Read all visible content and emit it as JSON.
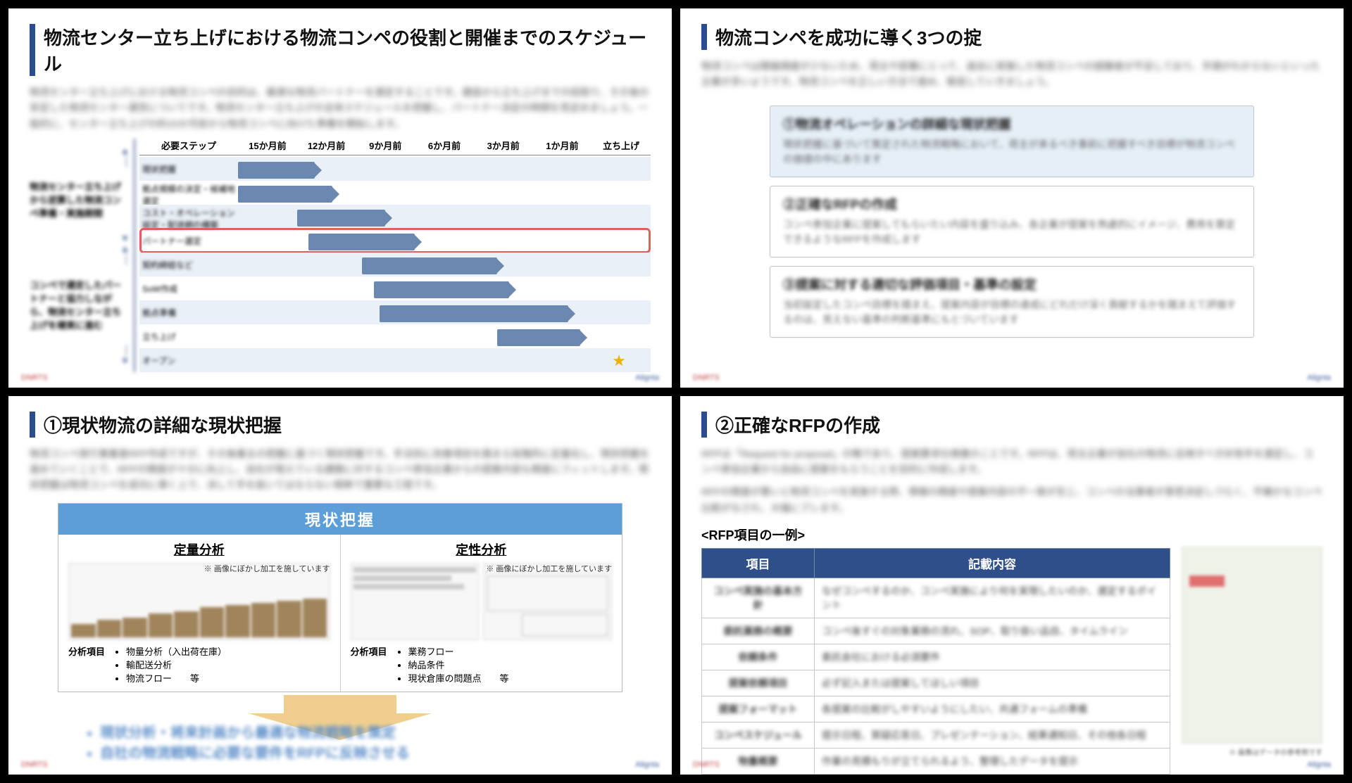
{
  "slide1": {
    "title": "物流センター立ち上げにおける物流コンペの役割と開催までのスケジュール",
    "intro": "物流センター立ち上げにおける物流コンペの目的は、最適な物流パートナーを選定することです。建設から立ち上げまでの段取り、その後の安定した物流センター運営についてです。物流センター立ち上げの全体スケジュールを把握し、パートナー決定の時期を見定めましょう。一般的に、センター立ち上げの約15か月前から物流コンペに向けた準備を開始します。",
    "step_label": "必要ステップ",
    "columns": [
      "15か月前",
      "12か月前",
      "9か月前",
      "6か月前",
      "3か月前",
      "1か月前",
      "立ち上げ"
    ],
    "rows": [
      {
        "label": "現状把握",
        "start": 0,
        "span": 1.3,
        "striped": true
      },
      {
        "label": "拠点規模の決定・候補地選定",
        "start": 0,
        "span": 1.6,
        "striped": false
      },
      {
        "label": "コスト・オペレーション設定・配送網の構築",
        "start": 1,
        "span": 1.5,
        "striped": true
      },
      {
        "label": "パートナー選定",
        "start": 1.2,
        "span": 1.8,
        "striped": false,
        "highlight": true
      },
      {
        "label": "契約締結など",
        "start": 2.1,
        "span": 2.3,
        "striped": true
      },
      {
        "label": "SoW作成",
        "start": 2.3,
        "span": 2.3,
        "striped": false
      },
      {
        "label": "拠点準備",
        "start": 2.4,
        "span": 3.2,
        "striped": true
      },
      {
        "label": "立ち上げ",
        "start": 4.4,
        "span": 1.4,
        "striped": false
      },
      {
        "label": "オープン",
        "start": 0,
        "span": 0,
        "striped": true,
        "star": true
      }
    ],
    "left_labels": [
      "物流センター立ち上げから逆算した物流コンペ準備・実施期間",
      "コンペで選定したパートナーと協力しながら、物流センター立ち上げを確実に進む"
    ]
  },
  "slide2": {
    "title": "物流コンペを成功に導く3つの掟",
    "intro": "物流コンペは開催頻度が少ないため、荷主や部署にとって、過去に実施した物流コンペの経験者が不足しており、手順がわからないといった企業が多いようです。物流コンペを正しい方法で進め、販促していきましょう。",
    "points": [
      {
        "title": "①物流オペレーションの詳細な現状把握",
        "body": "現状把握に基づいて策定された物流戦略において、荷主が来るべき事前に把握すべき目標が物流コンペの価値の中にあります",
        "highlight": true
      },
      {
        "title": "②正確なRFPの作成",
        "body": "コンペ参加企業に提案してもらいたい内容を盛り込み、各企業が提案を熟慮的にイメージ、費用を算定できるようなRFPを作成します",
        "highlight": false
      },
      {
        "title": "③提案に対する適切な評価項目・基準の設定",
        "body": "当初設定したコンペ目標を踏まえ、提案内容が目標の達成にどれだけ深く貢献するかを踏まえて評価するのは、見えない基準の判断基準にもとづいています",
        "highlight": false
      }
    ]
  },
  "slide3": {
    "title": "①現状物流の詳細な現状把握",
    "intro": "物流コンペ実行事業者RFP作成ですが、その後業主の把握に基づく現状把握です。手法別に改善項目を踏まえ段階的に定量化し、現状把握を進めていくことで、RFPの精度が十分に向上し、自社が抱えている課題に対するコンペ参加企業からの提案内容も精度にフィットします。現状把握は物流コンペを成功に導く上で、決して手を抜いてはならない根幹で重要な工程です。",
    "header": "現状把握",
    "col1_title": "定量分析",
    "col2_title": "定性分析",
    "caption": "※ 画像にぼかし加工を施しています",
    "items_label": "分析項目",
    "col1_items": [
      "物量分析（入出荷在庫）",
      "輸配送分析",
      "物流フロー　　等"
    ],
    "col2_items": [
      "業務フロー",
      "納品条件",
      "現状倉庫の問題点　　等"
    ],
    "conclusions": [
      "現状分析・将来計画から最適な物流戦略を策定",
      "自社の物流戦略に必要な要件をRFPに反映させる"
    ]
  },
  "slide4": {
    "title": "②正確なRFPの作成",
    "intro1": "RFPは「Request for proposal」の略であり、提案要求仕様書のことです。RFPは、荷主企業が自社の物流に反映すべき好条件を選定し、コンペ参加企業から自由に提案をもらうことを目的に作成します。",
    "intro2": "RFPの精度が悪いと物流コンペを実施する際、情報の精度や提案内容の不一致が生じ、コンペの当事者が意思決定しづらく、不確かなコンペ比較がなされ、大幅にブレます。",
    "subtitle": "<RFP項目の一例>",
    "th1": "項目",
    "th2": "記載内容",
    "rows": [
      {
        "k": "コンペ実施の基本方針",
        "v": "なぜコンペするのか、コンペ実施により何を実現したいのか、選定するポイント"
      },
      {
        "k": "委託業務の概要",
        "v": "コンペ後すぐの対象業務の流れ、SOP、取り扱い品目、タイムライン"
      },
      {
        "k": "依頼条件",
        "v": "委託会社における必須要件"
      },
      {
        "k": "提案依頼項目",
        "v": "必ず記入または提案してほしい項目"
      },
      {
        "k": "提案フォーマット",
        "v": "各提案の比較がしやすいようにしたい、共通フォームの準備"
      },
      {
        "k": "コンペスケジュール",
        "v": "提示日程、質疑応答日、プレゼンテーション、結果通知日、その他各日程"
      },
      {
        "k": "物量概要",
        "v": "作業の見積もりが立てられるよう、整理したデータを提示"
      }
    ],
    "right_foot": "※ 画像はデータの参考例です"
  },
  "colors": {
    "accent": "#2a4d8f",
    "bar": "#6b89b0",
    "stripe": "#eaf0f7",
    "highlight": "#e06060",
    "header_blue": "#5b9ed8",
    "table_head": "#2f4f8a",
    "arrow_fill": "#f0cf8e",
    "star": "#f0b000"
  }
}
